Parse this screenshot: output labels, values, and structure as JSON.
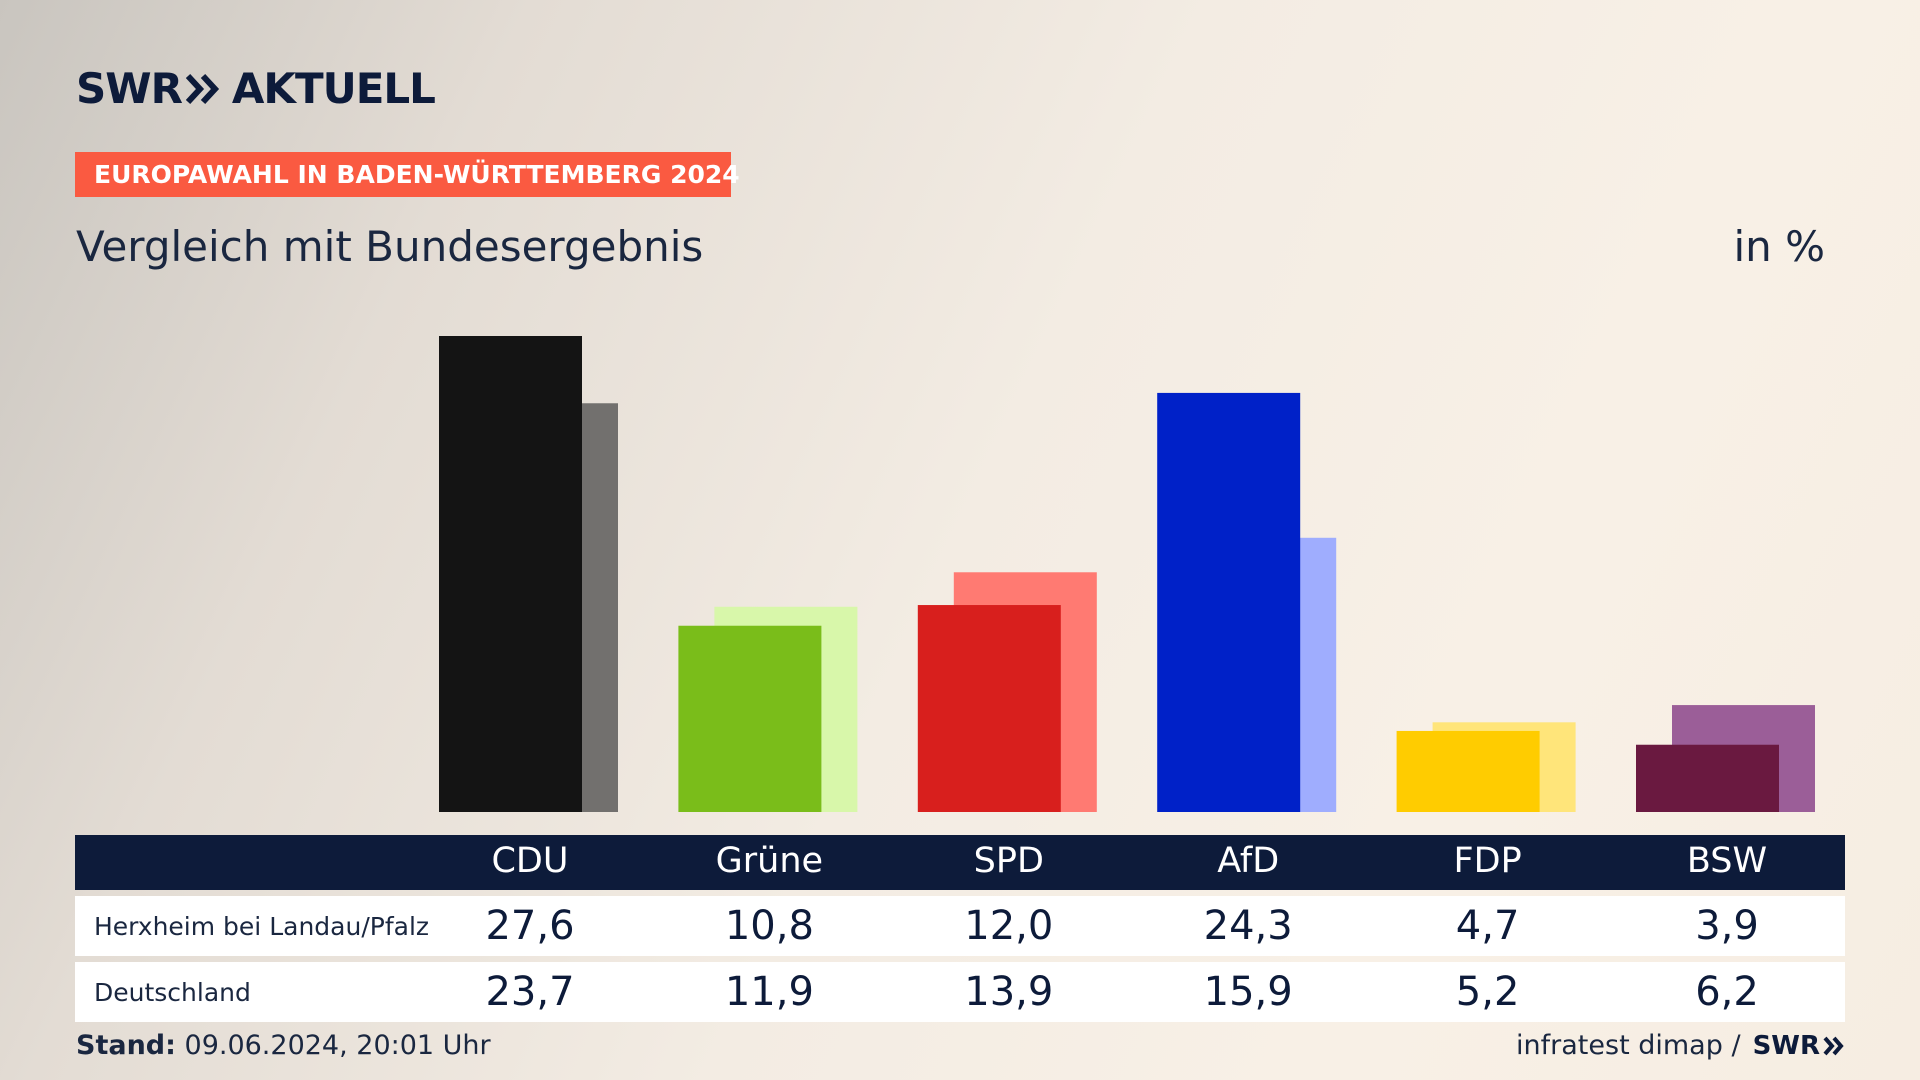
{
  "brand": {
    "logo_left": "SWR",
    "logo_right": "AKTUELL",
    "footer_logo": "SWR"
  },
  "header": {
    "badge": "EUROPAWAHL IN BADEN-WÜRTTEMBERG 2024",
    "subtitle": "Vergleich mit Bundesergebnis",
    "unit": "in %"
  },
  "footer": {
    "stand_label": "Stand:",
    "stand_value": "09.06.2024, 20:01 Uhr",
    "source": "infratest dimap /"
  },
  "chart_data": {
    "type": "bar",
    "categories": [
      "CDU",
      "Grüne",
      "SPD",
      "AfD",
      "FDP",
      "BSW"
    ],
    "series": [
      {
        "name": "Herxheim bei Landau/Pfalz",
        "values": [
          27.6,
          10.8,
          12.0,
          24.3,
          4.7,
          3.9
        ]
      },
      {
        "name": "Deutschland",
        "values": [
          23.7,
          11.9,
          13.9,
          15.9,
          5.2,
          6.2
        ]
      }
    ],
    "value_labels": {
      "Herxheim bei Landau/Pfalz": [
        "27,6",
        "10,8",
        "12,0",
        "24,3",
        "4,7",
        "3,9"
      ],
      "Deutschland": [
        "23,7",
        "11,9",
        "13,9",
        "15,9",
        "5,2",
        "6,2"
      ]
    },
    "colors_primary": [
      "#141414",
      "#7abd1a",
      "#d81f1d",
      "#0021c8",
      "#ffcc00",
      "#6a1940"
    ],
    "colors_secondary": [
      "#72706e",
      "#d8f7aa",
      "#ff7a72",
      "#9fadfe",
      "#ffe57a",
      "#9b5e98"
    ],
    "title": "Vergleich mit Bundesergebnis",
    "ylabel": "in %",
    "ylim": [
      0,
      27.6
    ],
    "grid": false
  }
}
